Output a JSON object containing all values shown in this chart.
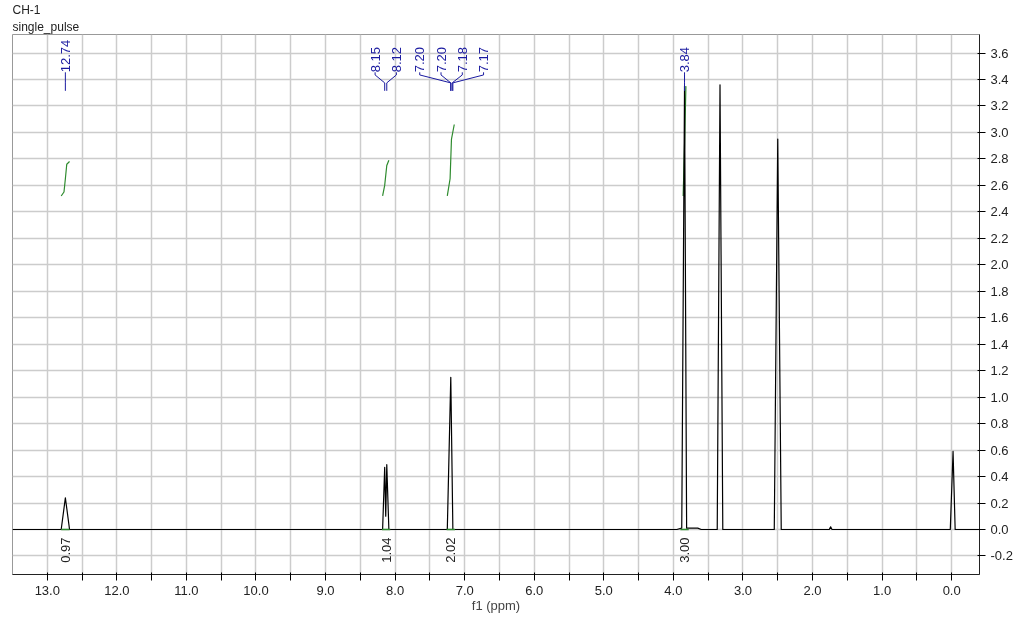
{
  "chart_data": {
    "type": "line",
    "title": "CH-1",
    "subtitle": "single_pulse",
    "xlabel": "f1 (ppm)",
    "xlim": [
      13.5,
      -0.4
    ],
    "ylim": [
      -0.34,
      3.74
    ],
    "xticks": [
      {
        "value": 13,
        "label": "13.0"
      },
      {
        "value": 12.5,
        "label": null
      },
      {
        "value": 12,
        "label": "12.0"
      },
      {
        "value": 11.5,
        "label": null
      },
      {
        "value": 11,
        "label": "11.0"
      },
      {
        "value": 10.5,
        "label": null
      },
      {
        "value": 10,
        "label": "10.0"
      },
      {
        "value": 9.5,
        "label": null
      },
      {
        "value": 9,
        "label": "9.0"
      },
      {
        "value": 8.5,
        "label": null
      },
      {
        "value": 8,
        "label": "8.0"
      },
      {
        "value": 7.5,
        "label": null
      },
      {
        "value": 7,
        "label": "7.0"
      },
      {
        "value": 6.5,
        "label": null
      },
      {
        "value": 6,
        "label": "6.0"
      },
      {
        "value": 5.5,
        "label": null
      },
      {
        "value": 5,
        "label": "5.0"
      },
      {
        "value": 4.5,
        "label": null
      },
      {
        "value": 4,
        "label": "4.0"
      },
      {
        "value": 3.5,
        "label": null
      },
      {
        "value": 3,
        "label": "3.0"
      },
      {
        "value": 2.5,
        "label": null
      },
      {
        "value": 2,
        "label": "2.0"
      },
      {
        "value": 1.5,
        "label": null
      },
      {
        "value": 1,
        "label": "1.0"
      },
      {
        "value": 0.5,
        "label": null
      },
      {
        "value": 0,
        "label": "0.0"
      }
    ],
    "yticks": [
      {
        "value": -0.2,
        "label": "-0.2"
      },
      {
        "value": 0,
        "label": "0.0"
      },
      {
        "value": 0.2,
        "label": "0.2"
      },
      {
        "value": 0.4,
        "label": "0.4"
      },
      {
        "value": 0.6,
        "label": "0.6"
      },
      {
        "value": 0.8,
        "label": "0.8"
      },
      {
        "value": 1.0,
        "label": "1.0"
      },
      {
        "value": 1.2,
        "label": "1.2"
      },
      {
        "value": 1.4,
        "label": "1.4"
      },
      {
        "value": 1.6,
        "label": "1.6"
      },
      {
        "value": 1.8,
        "label": "1.8"
      },
      {
        "value": 2.0,
        "label": "2.0"
      },
      {
        "value": 2.2,
        "label": "2.2"
      },
      {
        "value": 2.4,
        "label": "2.4"
      },
      {
        "value": 2.6,
        "label": "2.6"
      },
      {
        "value": 2.8,
        "label": "2.8"
      },
      {
        "value": 3.0,
        "label": "3.0"
      },
      {
        "value": 3.2,
        "label": "3.2"
      },
      {
        "value": 3.4,
        "label": "3.4"
      },
      {
        "value": 3.6,
        "label": "3.6"
      }
    ],
    "grid": true,
    "marker": "none",
    "line_style": "solid",
    "series": [
      {
        "color": "#000000",
        "x": [
          13.5,
          12.8,
          12.74,
          12.68,
          8.18,
          8.15,
          8.135,
          8.12,
          8.09,
          7.25,
          7.2,
          7.17,
          3.95,
          3.88,
          3.84,
          3.81,
          3.65,
          3.6,
          3.37,
          3.33,
          3.29,
          2.55,
          2.5,
          2.45,
          2.3,
          1.76,
          1.74,
          1.72,
          0.02,
          -0.02,
          -0.05,
          -0.4
        ],
        "values": [
          0,
          0,
          0.24,
          0,
          0,
          0.47,
          0.1,
          0.49,
          0,
          0,
          1.15,
          0,
          0,
          0.01,
          3.35,
          0.01,
          0.01,
          0,
          0,
          3.36,
          0,
          0,
          2.95,
          0,
          0,
          0,
          0.02,
          0,
          0,
          0.59,
          0,
          0
        ]
      },
      {
        "color": "#2e8b2e",
        "x": [
          12.8,
          12.76,
          12.74,
          12.72,
          12.68,
          12.0,
          8.18,
          8.15,
          8.12,
          8.09,
          7.5,
          7.25,
          7.21,
          7.19,
          7.15,
          5.0,
          3.86,
          3.84,
          3.82
        ],
        "values": [
          2.52,
          2.55,
          2.65,
          2.76,
          2.78,
          null,
          2.52,
          2.6,
          2.75,
          2.79,
          null,
          2.52,
          2.65,
          2.95,
          3.06,
          null,
          2.52,
          2.9,
          3.35
        ]
      }
    ],
    "annotations": [
      {
        "text": "12.74",
        "x": 12.74
      },
      {
        "text": "8.15",
        "x": 8.15
      },
      {
        "text": "8.12",
        "x": 8.12
      },
      {
        "text": "7.20",
        "x": 7.2
      },
      {
        "text": "7.20",
        "x": 7.2
      },
      {
        "text": "7.18",
        "x": 7.18
      },
      {
        "text": "7.17",
        "x": 7.17
      },
      {
        "text": "3.84",
        "x": 3.84
      },
      {
        "text": "0.97",
        "x": 12.74,
        "y": 0
      },
      {
        "text": "1.04",
        "x": 8.13,
        "y": 0
      },
      {
        "text": "2.02",
        "x": 7.2,
        "y": 0
      },
      {
        "text": "3.00",
        "x": 3.84,
        "y": 0
      }
    ]
  }
}
